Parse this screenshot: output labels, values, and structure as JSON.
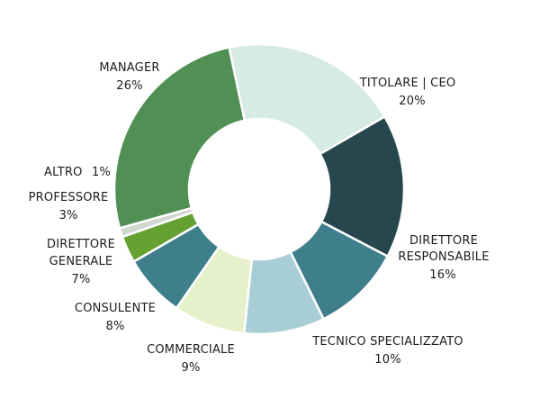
{
  "chart_data": {
    "type": "pie",
    "donut": true,
    "title": "",
    "legend": "none",
    "slices": [
      {
        "label": "TITOLARE | CEO",
        "value": 20,
        "display": "20%",
        "color": "#d5ebe4"
      },
      {
        "label": "DIRETTORE RESPONSABILE",
        "value": 16,
        "display": "16%",
        "color": "#26474d"
      },
      {
        "label": "TECNICO SPECIALIZZATO",
        "value": 10,
        "display": "10%",
        "color": "#3f7e8b"
      },
      {
        "label": "COMMERCIALE",
        "value": 9,
        "display": "9%",
        "color": "#a7cdd5"
      },
      {
        "label": "CONSULENTE",
        "value": 8,
        "display": "8%",
        "color": "#e6f0ca"
      },
      {
        "label": "DIRETTORE GENERALE",
        "value": 7,
        "display": "7%",
        "color": "#3f7e8b"
      },
      {
        "label": "PROFESSORE",
        "value": 3,
        "display": "3%",
        "color": "#65a033"
      },
      {
        "label": "ALTRO",
        "value": 1,
        "display": "1%",
        "color": "#cfd7cf"
      },
      {
        "label": "MANAGER",
        "value": 26,
        "display": "26%",
        "color": "#519055"
      }
    ]
  }
}
